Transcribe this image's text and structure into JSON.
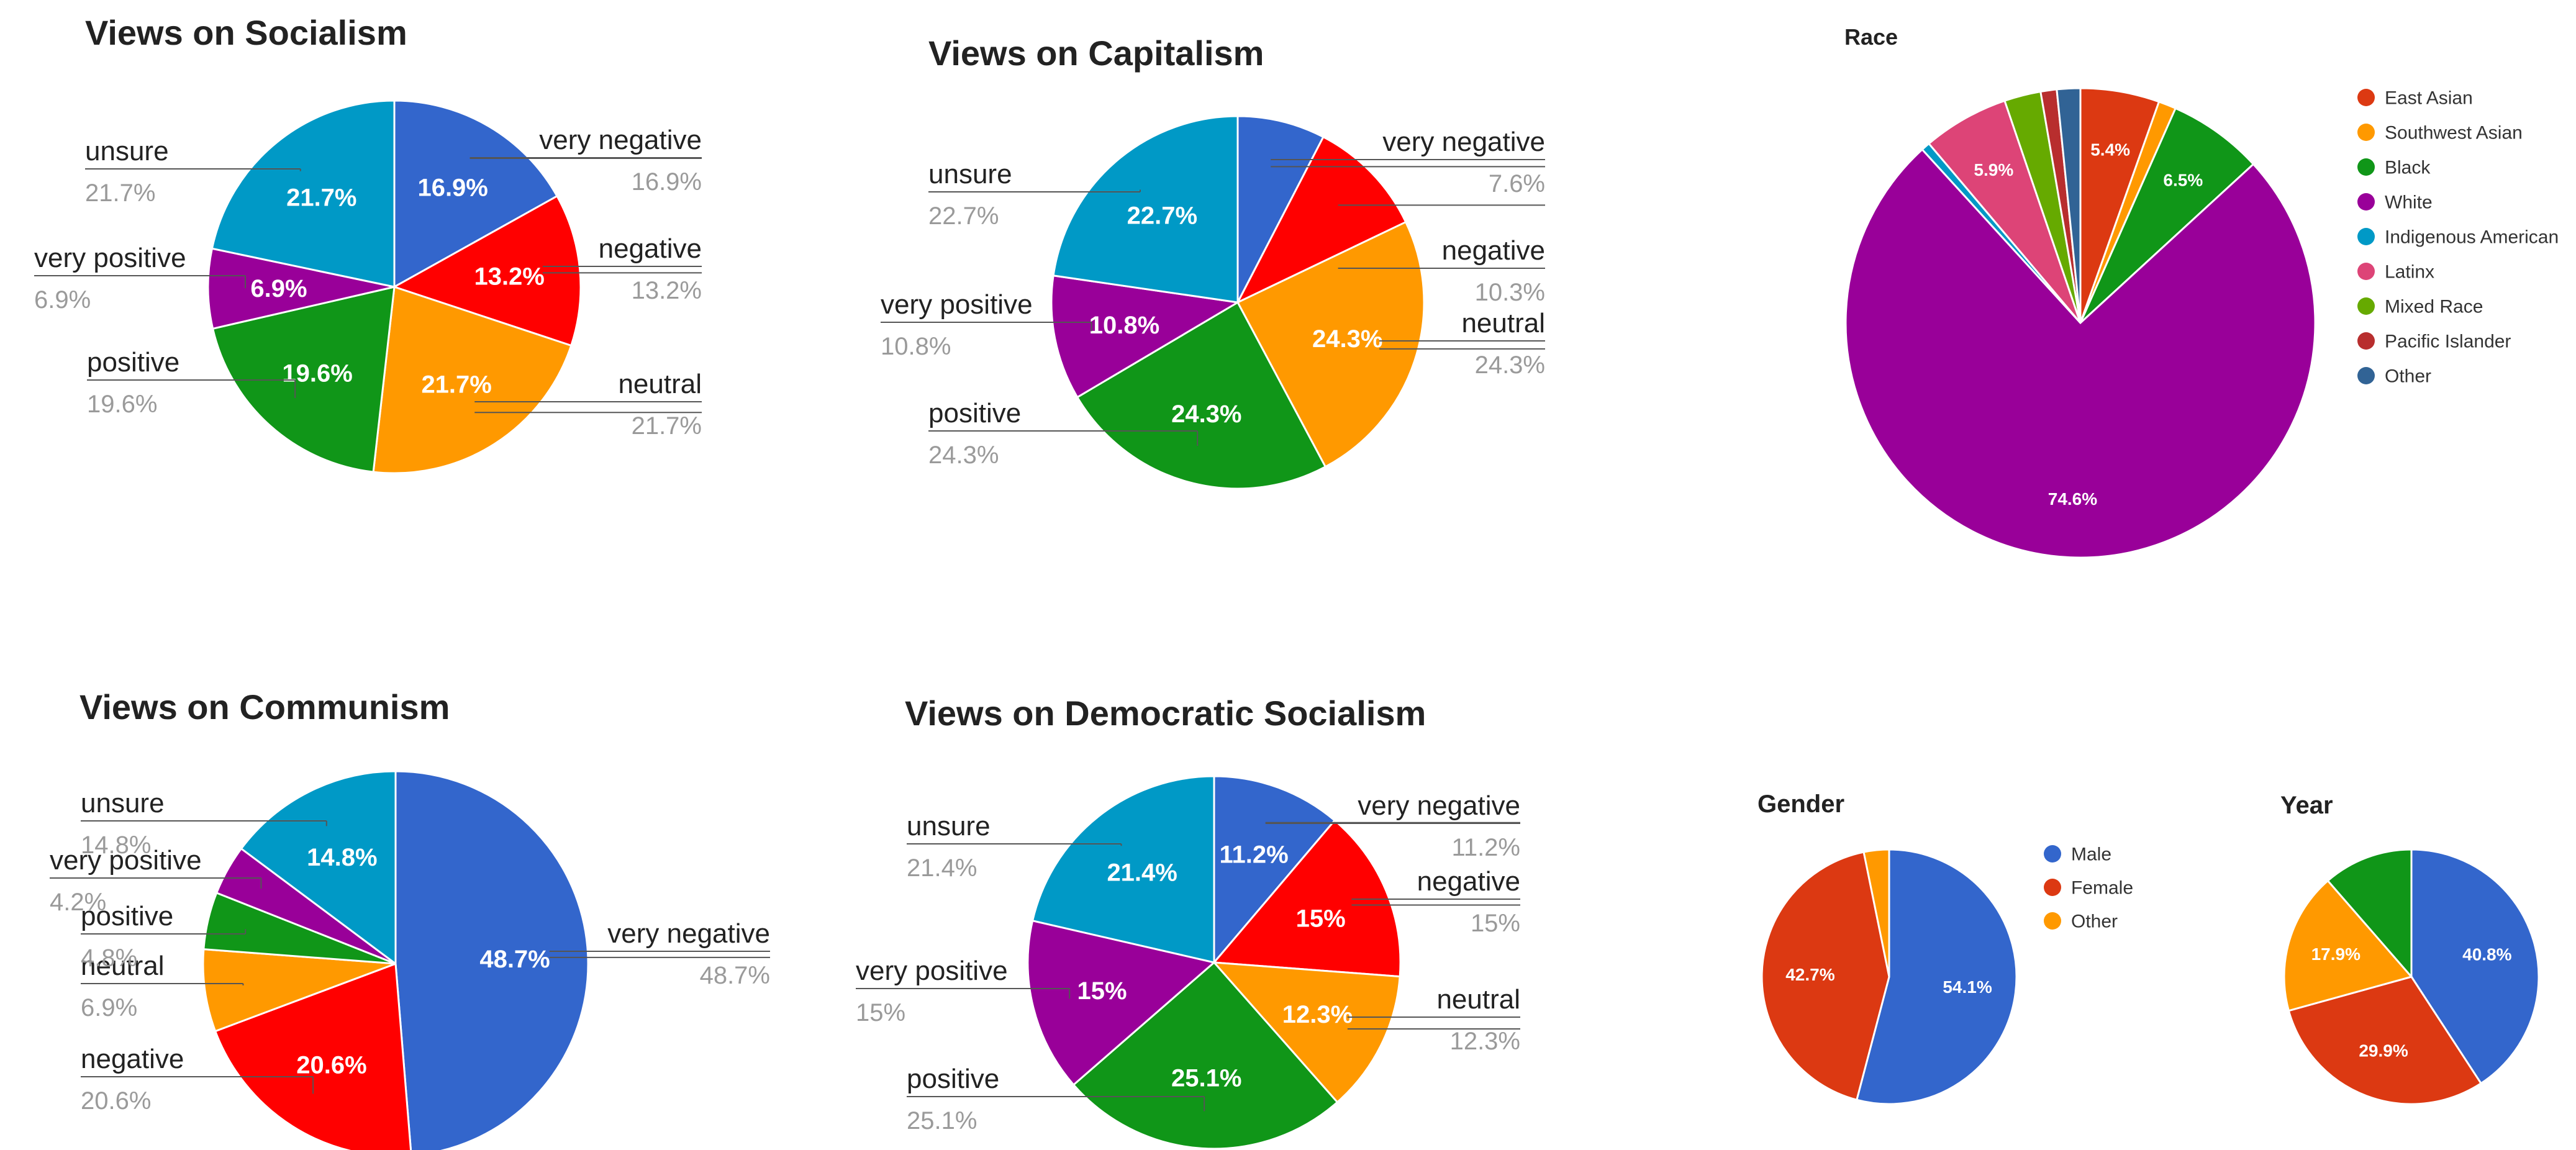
{
  "chart_data": [
    {
      "type": "pie",
      "title": "Views on Socialism",
      "start_angle": 0,
      "order": [
        "very negative",
        "negative",
        "neutral",
        "positive",
        "very positive",
        "unsure"
      ],
      "values": [
        16.9,
        13.2,
        21.7,
        19.6,
        6.9,
        21.7
      ],
      "slice_labels": [
        "16.9%",
        "13.2%",
        "21.7%",
        "19.6%",
        "6.9%",
        "21.7%"
      ],
      "colors": [
        "#3366cc",
        "#ff0000",
        "#ff9900",
        "#109618",
        "#990099",
        "#0099c6"
      ],
      "callout_pct": [
        "16.9%",
        "13.2%",
        "21.7%",
        "19.6%",
        "6.9%",
        "21.7%"
      ]
    },
    {
      "type": "pie",
      "title": "Views on Capitalism",
      "start_angle": 0,
      "order": [
        "very negative",
        "negative",
        "neutral",
        "positive",
        "very positive",
        "unsure"
      ],
      "values": [
        7.6,
        10.3,
        24.3,
        24.3,
        10.8,
        22.7
      ],
      "slice_labels": [
        "",
        "",
        "24.3%",
        "24.3%",
        "10.8%",
        "22.7%"
      ],
      "colors": [
        "#3366cc",
        "#ff0000",
        "#ff9900",
        "#109618",
        "#990099",
        "#0099c6"
      ],
      "callout_pct": [
        "7.6%",
        "10.3%",
        "24.3%",
        "24.3%",
        "10.8%",
        "22.7%"
      ]
    },
    {
      "type": "pie",
      "title": "Race",
      "start_angle": 0,
      "order": [
        "East Asian",
        "Southwest Asian",
        "Black",
        "White",
        "Indigenous American",
        "Latinx",
        "Mixed Race",
        "Pacific Islander",
        "Other"
      ],
      "values": [
        5.4,
        1.2,
        6.5,
        74.6,
        0.6,
        5.9,
        2.5,
        1.1,
        1.6
      ],
      "slice_labels": [
        "5.4%",
        "",
        "6.5%",
        "74.6%",
        "",
        "5.9%",
        "",
        "",
        ""
      ],
      "colors": [
        "#dc3912",
        "#ff9900",
        "#109618",
        "#990099",
        "#0099c6",
        "#dd4477",
        "#66aa00",
        "#b82e2e",
        "#316395"
      ],
      "legend": [
        "East Asian",
        "Southwest Asian",
        "Black",
        "White",
        "Indigenous American",
        "Latinx",
        "Mixed Race",
        "Pacific Islander",
        "Other"
      ]
    },
    {
      "type": "pie",
      "title": "Views on Communism",
      "start_angle": 0,
      "order": [
        "very negative",
        "negative",
        "neutral",
        "positive",
        "very positive",
        "unsure"
      ],
      "values": [
        48.7,
        20.6,
        6.9,
        4.8,
        4.2,
        14.8
      ],
      "slice_labels": [
        "48.7%",
        "20.6%",
        "",
        "",
        "",
        "14.8%"
      ],
      "colors": [
        "#3366cc",
        "#ff0000",
        "#ff9900",
        "#109618",
        "#990099",
        "#0099c6"
      ],
      "callout_pct": [
        "48.7%",
        "20.6%",
        "6.9%",
        "4.8%",
        "4.2%",
        "14.8%"
      ]
    },
    {
      "type": "pie",
      "title": "Views on Democratic Socialism",
      "start_angle": 0,
      "order": [
        "very negative",
        "negative",
        "neutral",
        "positive",
        "very positive",
        "unsure"
      ],
      "values": [
        11.2,
        15,
        12.3,
        25.1,
        15,
        21.4
      ],
      "slice_labels": [
        "11.2%",
        "15%",
        "12.3%",
        "25.1%",
        "15%",
        "21.4%"
      ],
      "colors": [
        "#3366cc",
        "#ff0000",
        "#ff9900",
        "#109618",
        "#990099",
        "#0099c6"
      ],
      "callout_pct": [
        "11.2%",
        "15%",
        "12.3%",
        "25.1%",
        "15%",
        "21.4%"
      ]
    },
    {
      "type": "pie",
      "title": "Gender",
      "start_angle": 0,
      "order": [
        "Male",
        "Female",
        "Other"
      ],
      "values": [
        54.1,
        42.7,
        3.2
      ],
      "slice_labels": [
        "54.1%",
        "42.7%",
        ""
      ],
      "colors": [
        "#3366cc",
        "#dc3912",
        "#ff9900"
      ],
      "legend": [
        "Male",
        "Female",
        "Other"
      ]
    },
    {
      "type": "pie",
      "title": "Year",
      "start_angle": 0,
      "order": [
        "",
        "",
        "",
        ""
      ],
      "values": [
        40.8,
        29.9,
        17.9,
        11.4
      ],
      "slice_labels": [
        "40.8%",
        "29.9%",
        "17.9%",
        ""
      ],
      "colors": [
        "#3366cc",
        "#dc3912",
        "#ff9900",
        "#109618"
      ]
    }
  ]
}
